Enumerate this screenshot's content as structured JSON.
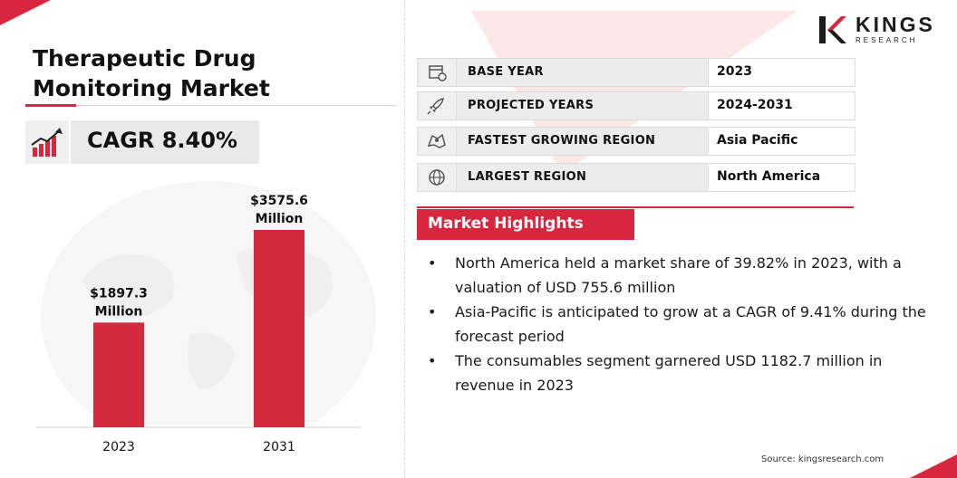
{
  "title": "Therapeutic Drug Monitoring Market",
  "cagr": {
    "text": "CAGR 8.40%",
    "icon": "growth-chart-icon"
  },
  "logo": {
    "name": "KINGS",
    "sub": "RESEARCH"
  },
  "info": [
    {
      "label": "BASE YEAR",
      "value": "2023",
      "icon": "calendar-clock-icon"
    },
    {
      "label": "PROJECTED YEARS",
      "value": "2024-2031",
      "icon": "rocket-icon"
    },
    {
      "label": "FASTEST GROWING REGION",
      "value": "Asia Pacific",
      "icon": "region-map-icon"
    },
    {
      "label": "LARGEST REGION",
      "value": "North America",
      "icon": "globe-icon"
    }
  ],
  "highlights": {
    "heading": "Market Highlights",
    "items": [
      "North America held a market share of 39.82% in 2023, with a valuation of USD 755.6 million",
      "Asia-Pacific is anticipated to grow at a CAGR of 9.41% during the forecast period",
      "The consumables segment garnered USD 1182.7 million in revenue in 2023"
    ]
  },
  "source": "Source: kingsresearch.com",
  "colors": {
    "accent": "#d7263d",
    "bar": "#d42a3e"
  },
  "chart_data": {
    "type": "bar",
    "categories": [
      "2023",
      "2031"
    ],
    "values": [
      1897.3,
      3575.6
    ],
    "value_labels": [
      "$1897.3 Million",
      "$3575.6 Million"
    ],
    "title": "",
    "xlabel": "",
    "ylabel": "",
    "ylim": [
      0,
      3575.6
    ],
    "grid": false,
    "legend": "none"
  }
}
